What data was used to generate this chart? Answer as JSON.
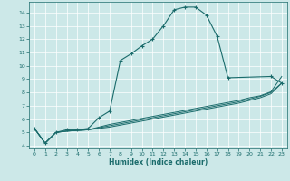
{
  "xlabel": "Humidex (Indice chaleur)",
  "background_color": "#cce8e8",
  "line_color": "#1a6b6b",
  "xlim": [
    -0.5,
    23.5
  ],
  "ylim": [
    3.8,
    14.8
  ],
  "xticks": [
    0,
    1,
    2,
    3,
    4,
    5,
    6,
    7,
    8,
    9,
    10,
    11,
    12,
    13,
    14,
    15,
    16,
    17,
    18,
    19,
    20,
    21,
    22,
    23
  ],
  "yticks": [
    4,
    5,
    6,
    7,
    8,
    9,
    10,
    11,
    12,
    13,
    14
  ],
  "main_curve": {
    "x": [
      0,
      1,
      2,
      3,
      4,
      5,
      6,
      7,
      8,
      9,
      10,
      11,
      12,
      13,
      14,
      15,
      16,
      17,
      18,
      22,
      23
    ],
    "y": [
      5.3,
      4.2,
      5.0,
      5.2,
      5.2,
      5.3,
      6.1,
      6.6,
      10.4,
      10.9,
      11.5,
      12.0,
      13.0,
      14.2,
      14.4,
      14.4,
      13.8,
      12.2,
      9.1,
      9.2,
      8.7
    ]
  },
  "linear_curves": [
    {
      "x": [
        0,
        1,
        2,
        3,
        4,
        5,
        6,
        7,
        8,
        9,
        10,
        11,
        12,
        13,
        14,
        15,
        16,
        17,
        18,
        19,
        20,
        21,
        22,
        23
      ],
      "y": [
        5.3,
        4.2,
        5.0,
        5.1,
        5.15,
        5.2,
        5.3,
        5.4,
        5.55,
        5.7,
        5.85,
        6.0,
        6.15,
        6.3,
        6.45,
        6.6,
        6.75,
        6.9,
        7.05,
        7.2,
        7.4,
        7.6,
        7.9,
        8.7
      ]
    },
    {
      "x": [
        0,
        1,
        2,
        3,
        4,
        5,
        6,
        7,
        8,
        9,
        10,
        11,
        12,
        13,
        14,
        15,
        16,
        17,
        18,
        19,
        20,
        21,
        22,
        23
      ],
      "y": [
        5.3,
        4.2,
        5.0,
        5.1,
        5.15,
        5.2,
        5.35,
        5.5,
        5.65,
        5.8,
        5.95,
        6.1,
        6.25,
        6.4,
        6.55,
        6.7,
        6.85,
        7.0,
        7.15,
        7.3,
        7.5,
        7.7,
        8.0,
        8.7
      ]
    },
    {
      "x": [
        0,
        1,
        2,
        3,
        4,
        5,
        6,
        7,
        8,
        9,
        10,
        11,
        12,
        13,
        14,
        15,
        16,
        17,
        18,
        19,
        20,
        21,
        22,
        23
      ],
      "y": [
        5.3,
        4.2,
        5.0,
        5.1,
        5.15,
        5.2,
        5.4,
        5.6,
        5.75,
        5.9,
        6.05,
        6.2,
        6.35,
        6.5,
        6.65,
        6.8,
        6.95,
        7.1,
        7.25,
        7.4,
        7.6,
        7.75,
        8.05,
        9.2
      ]
    }
  ]
}
